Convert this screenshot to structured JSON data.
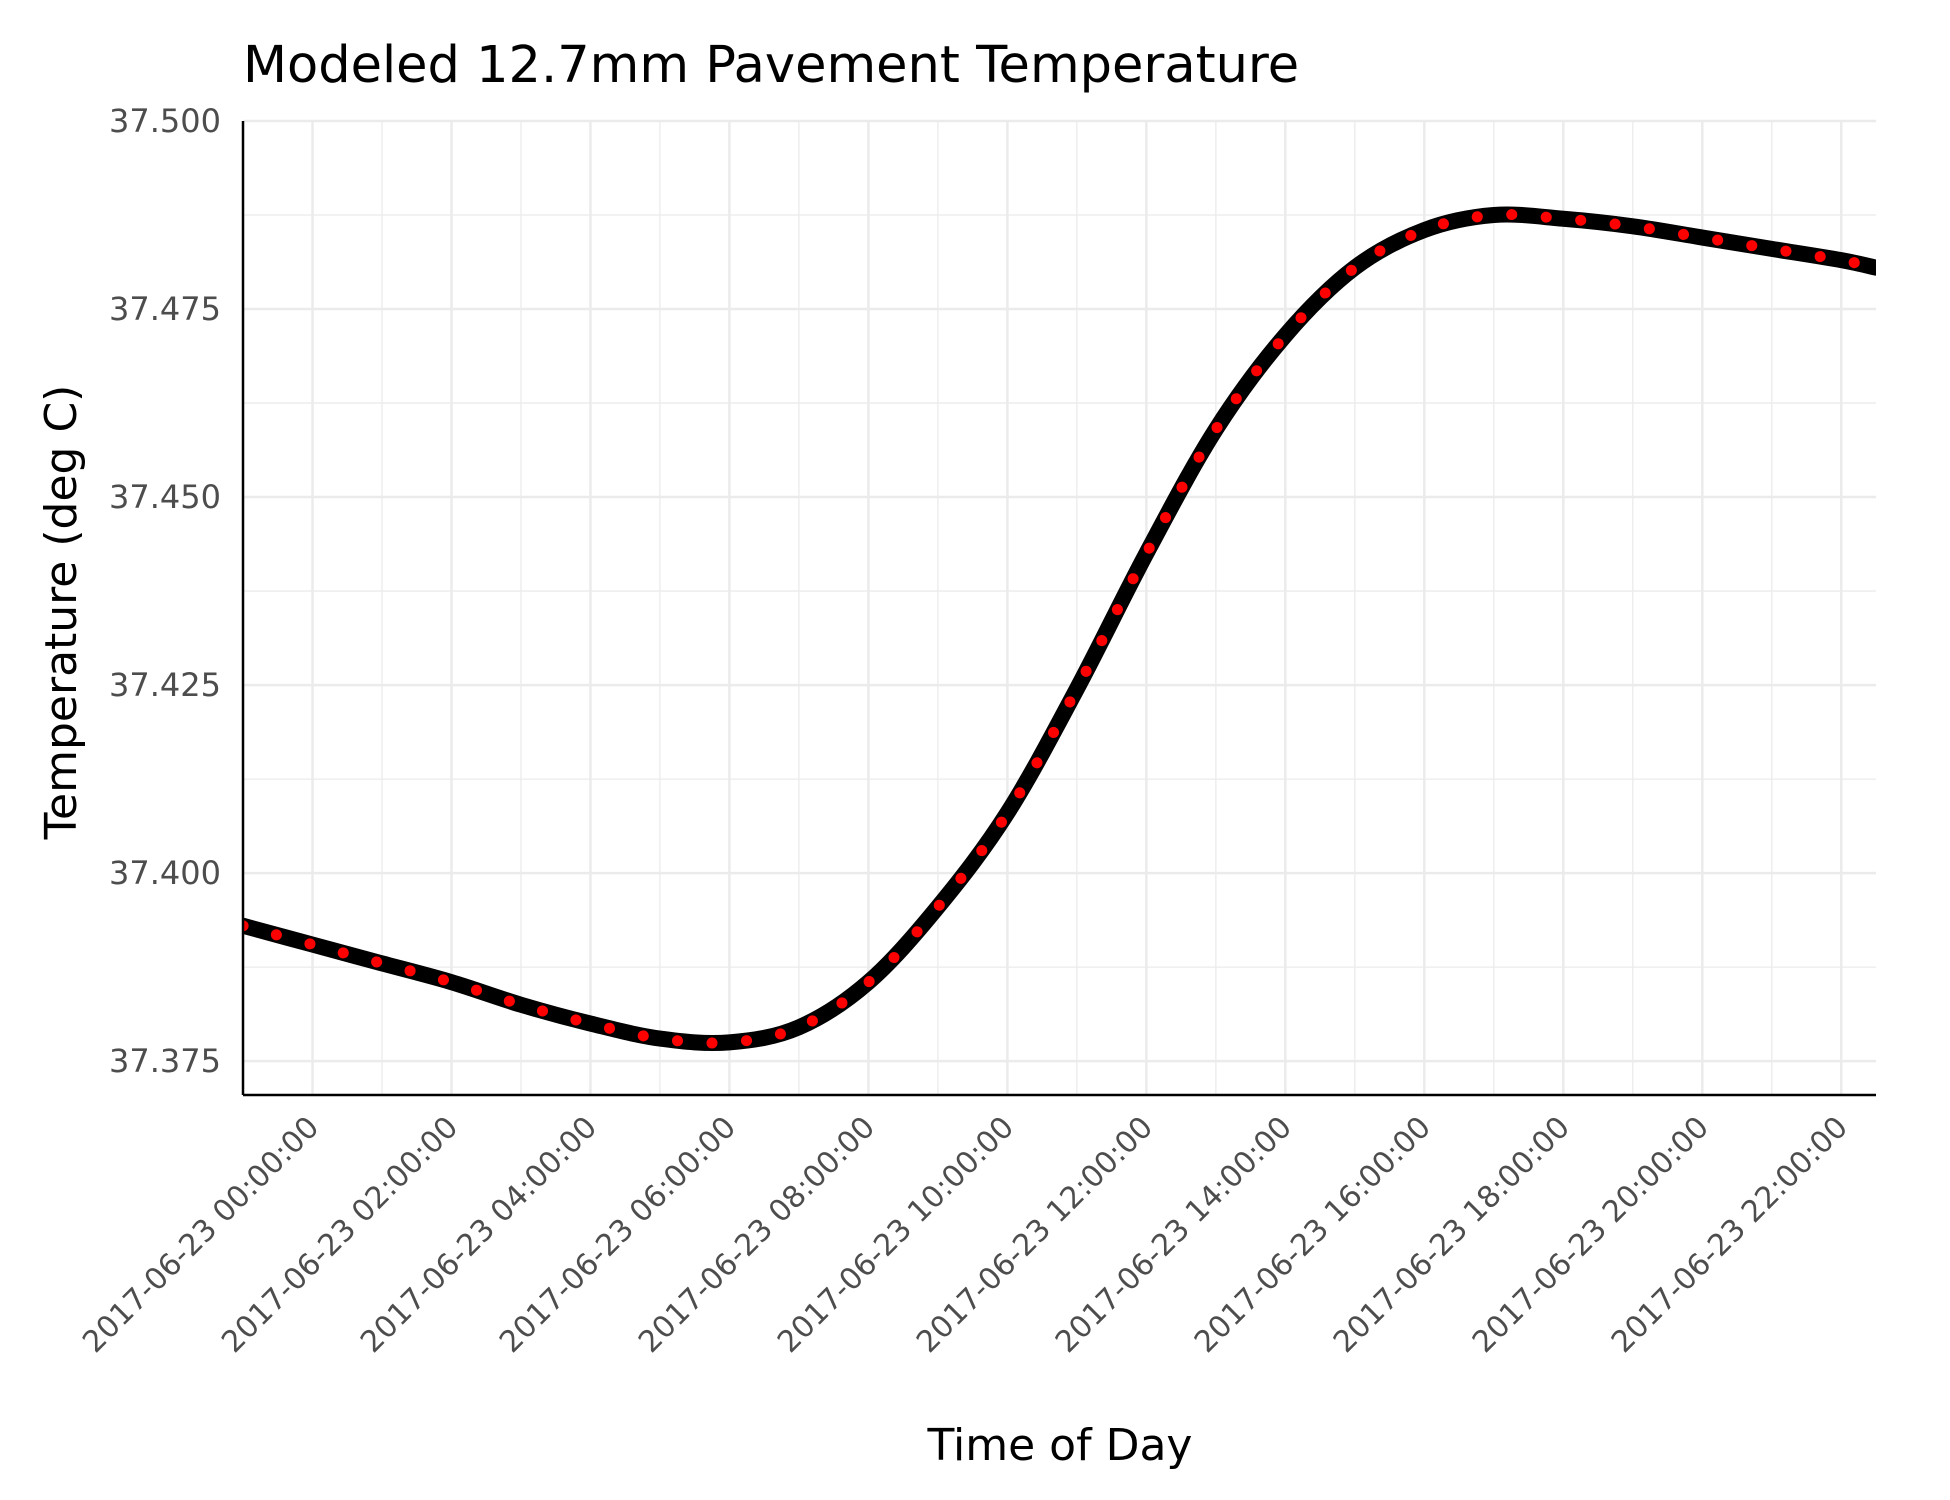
{
  "chart_data": {
    "type": "line",
    "title": "Modeled 12.7mm Pavement Temperature",
    "xlabel": "Time of Day",
    "ylabel": "Temperature (deg C)",
    "ylim": [
      37.3705,
      37.5
    ],
    "xlim": [
      "2017-06-22 23:00:00",
      "2017-06-23 22:30:00"
    ],
    "y_ticks": [
      "37.375",
      "37.400",
      "37.425",
      "37.450",
      "37.475",
      "37.500"
    ],
    "y_tick_values": [
      37.375,
      37.4,
      37.425,
      37.45,
      37.475,
      37.5
    ],
    "x_ticks": [
      "2017-06-23 00:00:00",
      "2017-06-23 02:00:00",
      "2017-06-23 04:00:00",
      "2017-06-23 06:00:00",
      "2017-06-23 08:00:00",
      "2017-06-23 10:00:00",
      "2017-06-23 12:00:00",
      "2017-06-23 14:00:00",
      "2017-06-23 16:00:00",
      "2017-06-23 18:00:00",
      "2017-06-23 20:00:00",
      "2017-06-23 22:00:00"
    ],
    "grid": true,
    "series": [
      {
        "style": "solid",
        "color": "#000000",
        "x": [
          "2017-06-22 23:00:00",
          "2017-06-23 00:00:00",
          "2017-06-23 01:00:00",
          "2017-06-23 02:00:00",
          "2017-06-23 03:00:00",
          "2017-06-23 04:00:00",
          "2017-06-23 05:00:00",
          "2017-06-23 06:00:00",
          "2017-06-23 07:00:00",
          "2017-06-23 08:00:00",
          "2017-06-23 09:00:00",
          "2017-06-23 10:00:00",
          "2017-06-23 11:00:00",
          "2017-06-23 12:00:00",
          "2017-06-23 13:00:00",
          "2017-06-23 14:00:00",
          "2017-06-23 15:00:00",
          "2017-06-23 16:00:00",
          "2017-06-23 17:00:00",
          "2017-06-23 18:00:00",
          "2017-06-23 19:00:00",
          "2017-06-23 20:00:00",
          "2017-06-23 21:00:00",
          "2017-06-23 22:00:00",
          "2017-06-23 22:30:00"
        ],
        "y": [
          37.393,
          37.3905,
          37.388,
          37.3855,
          37.3825,
          37.38,
          37.378,
          37.3775,
          37.3795,
          37.3855,
          37.3955,
          37.408,
          37.4245,
          37.4425,
          37.459,
          37.4715,
          37.4805,
          37.4855,
          37.4875,
          37.487,
          37.486,
          37.4845,
          37.483,
          37.4815,
          37.4805
        ]
      },
      {
        "style": "dotted",
        "color": "#ff0000",
        "x": [
          "2017-06-22 23:00:00",
          "2017-06-23 00:00:00",
          "2017-06-23 01:00:00",
          "2017-06-23 02:00:00",
          "2017-06-23 03:00:00",
          "2017-06-23 04:00:00",
          "2017-06-23 05:00:00",
          "2017-06-23 06:00:00",
          "2017-06-23 07:00:00",
          "2017-06-23 08:00:00",
          "2017-06-23 09:00:00",
          "2017-06-23 10:00:00",
          "2017-06-23 11:00:00",
          "2017-06-23 12:00:00",
          "2017-06-23 13:00:00",
          "2017-06-23 14:00:00",
          "2017-06-23 15:00:00",
          "2017-06-23 16:00:00",
          "2017-06-23 17:00:00",
          "2017-06-23 18:00:00",
          "2017-06-23 19:00:00",
          "2017-06-23 20:00:00",
          "2017-06-23 21:00:00",
          "2017-06-23 22:00:00",
          "2017-06-23 22:30:00"
        ],
        "y": [
          37.393,
          37.3905,
          37.388,
          37.3855,
          37.3825,
          37.38,
          37.378,
          37.3775,
          37.3795,
          37.3855,
          37.3955,
          37.408,
          37.4245,
          37.4425,
          37.459,
          37.4715,
          37.4805,
          37.4855,
          37.4875,
          37.487,
          37.486,
          37.4845,
          37.483,
          37.4815,
          37.4805
        ]
      }
    ]
  },
  "colors": {
    "background": "#ffffff",
    "grid": "#ebebeb",
    "axis": "#000000",
    "tick_text": "#4d4d4d"
  }
}
